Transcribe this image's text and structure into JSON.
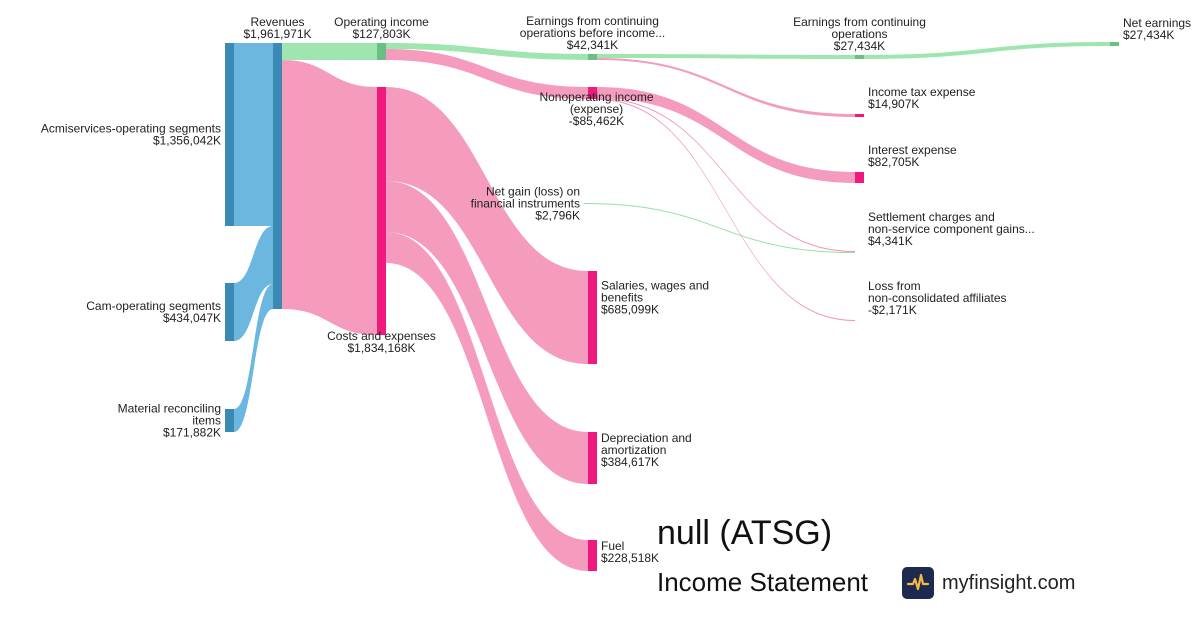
{
  "chart_data": {
    "type": "sankey",
    "nodes": [
      {
        "id": "acmi",
        "name": "Acmiservices-operating segments",
        "value_label": "$1,356,042K",
        "value": 1356042,
        "color": "#3a8ab5"
      },
      {
        "id": "cam",
        "name": "Cam-operating segments",
        "value_label": "$434,047K",
        "value": 434047,
        "color": "#3a8ab5"
      },
      {
        "id": "mat",
        "name": "Material reconciling items",
        "value_label": "$171,882K",
        "value": 171882,
        "color": "#3a8ab5"
      },
      {
        "id": "rev",
        "name": "Revenues",
        "value_label": "$1,961,971K",
        "value": 1961971,
        "color": "#3a8ab5"
      },
      {
        "id": "opinc",
        "name": "Operating income",
        "value_label": "$127,803K",
        "value": 127803,
        "color": "#6cbf84"
      },
      {
        "id": "costs",
        "name": "Costs and expenses",
        "value_label": "$1,834,168K",
        "value": 1834168,
        "color": "#f0197d"
      },
      {
        "id": "ebt",
        "name": "Earnings from continuing operations before income...",
        "value_label": "$42,341K",
        "value": 42341,
        "color": "#6cbf84"
      },
      {
        "id": "nonop",
        "name": "Nonoperating income (expense)",
        "value_label": "-$85,462K",
        "value": -85462,
        "color": "#f0197d"
      },
      {
        "id": "netgain",
        "name": "Net gain (loss) on financial instruments",
        "value_label": "$2,796K",
        "value": 2796,
        "color": "#6cbf84"
      },
      {
        "id": "salaries",
        "name": "Salaries, wages and benefits",
        "value_label": "$685,099K",
        "value": 685099,
        "color": "#f0197d"
      },
      {
        "id": "dep",
        "name": "Depreciation and amortization",
        "value_label": "$384,617K",
        "value": 384617,
        "color": "#f0197d"
      },
      {
        "id": "fuel",
        "name": "Fuel",
        "value_label": "$228,518K",
        "value": 228518,
        "color": "#f0197d"
      },
      {
        "id": "eco",
        "name": "Earnings from continuing operations",
        "value_label": "$27,434K",
        "value": 27434,
        "color": "#6cbf84"
      },
      {
        "id": "tax",
        "name": "Income tax expense",
        "value_label": "$14,907K",
        "value": 14907,
        "color": "#f0197d"
      },
      {
        "id": "interest",
        "name": "Interest expense",
        "value_label": "$82,705K",
        "value": 82705,
        "color": "#f0197d"
      },
      {
        "id": "settle",
        "name": "Settlement charges and non-service component gains...",
        "value_label": "$4,341K",
        "value": 4341,
        "color": "#888888"
      },
      {
        "id": "loss",
        "name": "Loss from non-consolidated affiliates",
        "value_label": "-$2,171K",
        "value": -2171,
        "color": "#f0197d"
      },
      {
        "id": "net",
        "name": "Net earnings",
        "value_label": "$27,434K",
        "value": 27434,
        "color": "#6cbf84"
      }
    ],
    "links": [
      {
        "source": "acmi",
        "target": "rev",
        "value": 1356042
      },
      {
        "source": "cam",
        "target": "rev",
        "value": 434047
      },
      {
        "source": "mat",
        "target": "rev",
        "value": 171882
      },
      {
        "source": "rev",
        "target": "opinc",
        "value": 127803
      },
      {
        "source": "rev",
        "target": "costs",
        "value": 1834168
      },
      {
        "source": "opinc",
        "target": "ebt",
        "value": 42341
      },
      {
        "source": "opinc",
        "target": "nonop",
        "value": 85462
      },
      {
        "source": "costs",
        "target": "salaries",
        "value": 685099
      },
      {
        "source": "costs",
        "target": "dep",
        "value": 384617
      },
      {
        "source": "costs",
        "target": "fuel",
        "value": 228518
      },
      {
        "source": "ebt",
        "target": "eco",
        "value": 27434
      },
      {
        "source": "ebt",
        "target": "tax",
        "value": 14907
      },
      {
        "source": "nonop",
        "target": "interest",
        "value": 82705
      },
      {
        "source": "nonop",
        "target": "settle",
        "value": 4341
      },
      {
        "source": "nonop",
        "target": "loss",
        "value": 2171
      },
      {
        "source": "netgain",
        "target": "settle",
        "value": 2796
      },
      {
        "source": "eco",
        "target": "net",
        "value": 27434
      }
    ]
  },
  "header": {
    "title": "null (ATSG)",
    "subtitle": "Income Statement",
    "brand": "myfinsight.com",
    "logo_icon": "pulse-icon"
  }
}
